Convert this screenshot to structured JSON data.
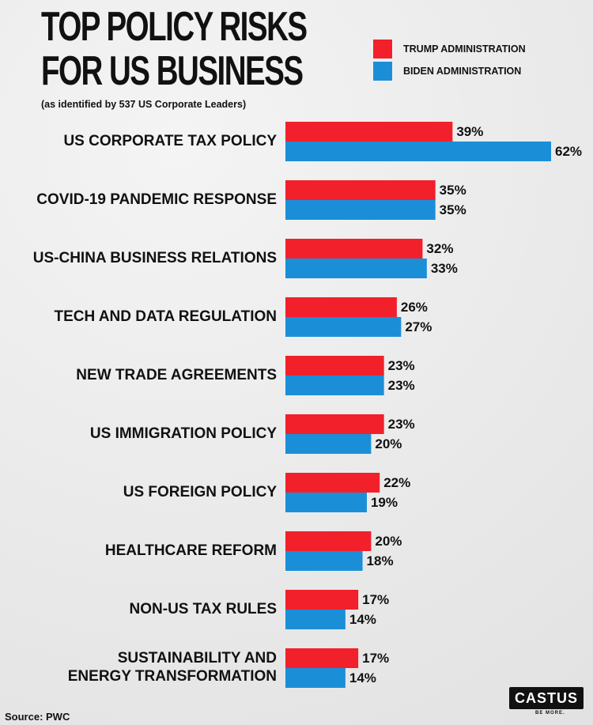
{
  "header": {
    "title_line1": "TOP POLICY RISKS",
    "title_line2": "FOR US BUSINESS",
    "subtitle": "(as identified by 537 US Corporate Leaders)"
  },
  "legend": [
    {
      "label": "TRUMP ADMINISTRATION",
      "color": "#f2202a"
    },
    {
      "label": "BIDEN ADMINISTRATION",
      "color": "#1a8fd8"
    }
  ],
  "chart_data": {
    "type": "bar",
    "orientation": "horizontal",
    "title": "TOP POLICY RISKS FOR US BUSINESS",
    "subtitle": "(as identified by 537 US Corporate Leaders)",
    "categories": [
      "US CORPORATE TAX POLICY",
      "COVID-19 PANDEMIC RESPONSE",
      "US-CHINA BUSINESS RELATIONS",
      "TECH AND DATA REGULATION",
      "NEW TRADE AGREEMENTS",
      "US IMMIGRATION POLICY",
      "US FOREIGN POLICY",
      "HEALTHCARE REFORM",
      "NON-US TAX RULES",
      "SUSTAINABILITY AND\nENERGY TRANSFORMATION"
    ],
    "series": [
      {
        "name": "TRUMP ADMINISTRATION",
        "color": "#f2202a",
        "values": [
          39,
          35,
          32,
          26,
          23,
          23,
          22,
          20,
          17,
          17
        ]
      },
      {
        "name": "BIDEN ADMINISTRATION",
        "color": "#1a8fd8",
        "values": [
          62,
          35,
          33,
          27,
          23,
          20,
          19,
          18,
          14,
          14
        ]
      }
    ],
    "value_suffix": "%",
    "xlim": [
      0,
      62
    ],
    "grid": false,
    "legend_position": "top-right"
  },
  "footer": {
    "source": "Source: PWC",
    "logo_text": "CASTUS",
    "logo_tagline": "BE MORE."
  }
}
